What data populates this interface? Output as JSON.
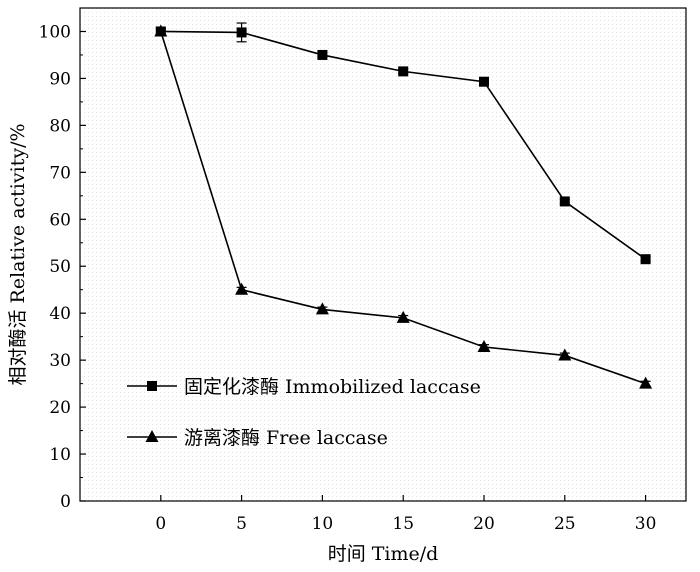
{
  "chart_data": {
    "type": "line",
    "title": "",
    "xlabel": "时间 Time/d",
    "ylabel": "相对酶活 Relative activity/%",
    "x": [
      0,
      5,
      10,
      15,
      20,
      25,
      30
    ],
    "xlim": [
      -5,
      32.5
    ],
    "ylim": [
      0,
      105
    ],
    "xticks": [
      0,
      5,
      10,
      15,
      20,
      25,
      30
    ],
    "yticks": [
      0,
      10,
      20,
      30,
      40,
      50,
      60,
      70,
      80,
      90,
      100
    ],
    "grid": false,
    "legend_position": "bottom-left",
    "series": [
      {
        "name": "固定化漆酶 Immobilized laccase",
        "marker": "square",
        "color": "#000000",
        "values": [
          100,
          99.8,
          95,
          91.5,
          89.3,
          63.8,
          51.5
        ],
        "errors": [
          0.8,
          2.0,
          0.5,
          0.5,
          0.5,
          0.5,
          0.5
        ]
      },
      {
        "name": "游离漆酶 Free laccase",
        "marker": "triangle",
        "color": "#000000",
        "values": [
          100,
          45,
          40.8,
          39,
          32.8,
          31,
          25
        ],
        "errors": [
          0.5,
          0.5,
          0.5,
          0.5,
          0.5,
          0.5,
          0.5
        ]
      }
    ]
  }
}
